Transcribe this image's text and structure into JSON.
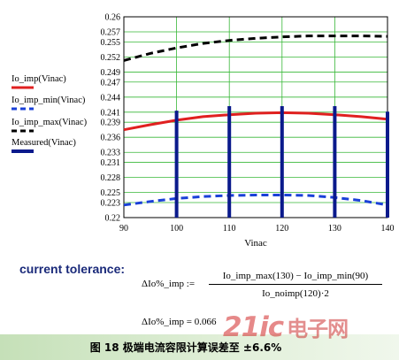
{
  "chart_data": {
    "type": "line",
    "xlabel": "Vinac",
    "xlim": [
      90,
      140
    ],
    "x_ticks": [
      90,
      100,
      110,
      120,
      130,
      140
    ],
    "ylim": [
      0.22,
      0.26
    ],
    "y_ticks": [
      0.22,
      0.223,
      0.225,
      0.228,
      0.231,
      0.233,
      0.236,
      0.239,
      0.241,
      0.244,
      0.247,
      0.249,
      0.252,
      0.255,
      0.257,
      0.26
    ],
    "grid": true,
    "legend_position": "left",
    "series": [
      {
        "name": "Io_imp(Vinac)",
        "style": "solid",
        "color": "#e02020",
        "x": [
          90,
          95,
          100,
          105,
          110,
          115,
          120,
          125,
          130,
          135,
          140
        ],
        "y": [
          0.2375,
          0.2385,
          0.2394,
          0.2401,
          0.2405,
          0.2408,
          0.2409,
          0.2408,
          0.2405,
          0.2401,
          0.2396
        ]
      },
      {
        "name": "Io_imp_min(Vinac)",
        "style": "dashed",
        "color": "#1a40d8",
        "x": [
          90,
          95,
          100,
          105,
          110,
          115,
          120,
          125,
          130,
          135,
          140
        ],
        "y": [
          0.2225,
          0.2232,
          0.2238,
          0.2242,
          0.2244,
          0.2245,
          0.2245,
          0.2244,
          0.224,
          0.2234,
          0.2225
        ]
      },
      {
        "name": "Io_imp_max(Vinac)",
        "style": "dashed",
        "color": "#000000",
        "x": [
          90,
          95,
          100,
          105,
          110,
          115,
          120,
          125,
          130,
          135,
          140
        ],
        "y": [
          0.2513,
          0.2527,
          0.2538,
          0.2547,
          0.2553,
          0.2557,
          0.256,
          0.2562,
          0.2562,
          0.2562,
          0.2561
        ]
      },
      {
        "name": "Measured(Vinac)",
        "style": "impulse",
        "color": "#0a1a8c",
        "x": [
          100,
          110,
          120,
          130,
          140
        ],
        "y": [
          0.2413,
          0.2422,
          0.2422,
          0.2422,
          0.2411
        ]
      }
    ]
  },
  "formula": {
    "heading": "current tolerance:",
    "lhs": "ΔIo%_imp :=",
    "numerator": "Io_imp_max(130) − Io_imp_min(90)",
    "denominator": "Io_noimp(120)·2",
    "result": "ΔIo%_imp = 0.066"
  },
  "caption": "图 18  极端电流容限计算误差至 ±6.6%",
  "watermark": {
    "latin": "21ic",
    "chinese": "电子网"
  }
}
